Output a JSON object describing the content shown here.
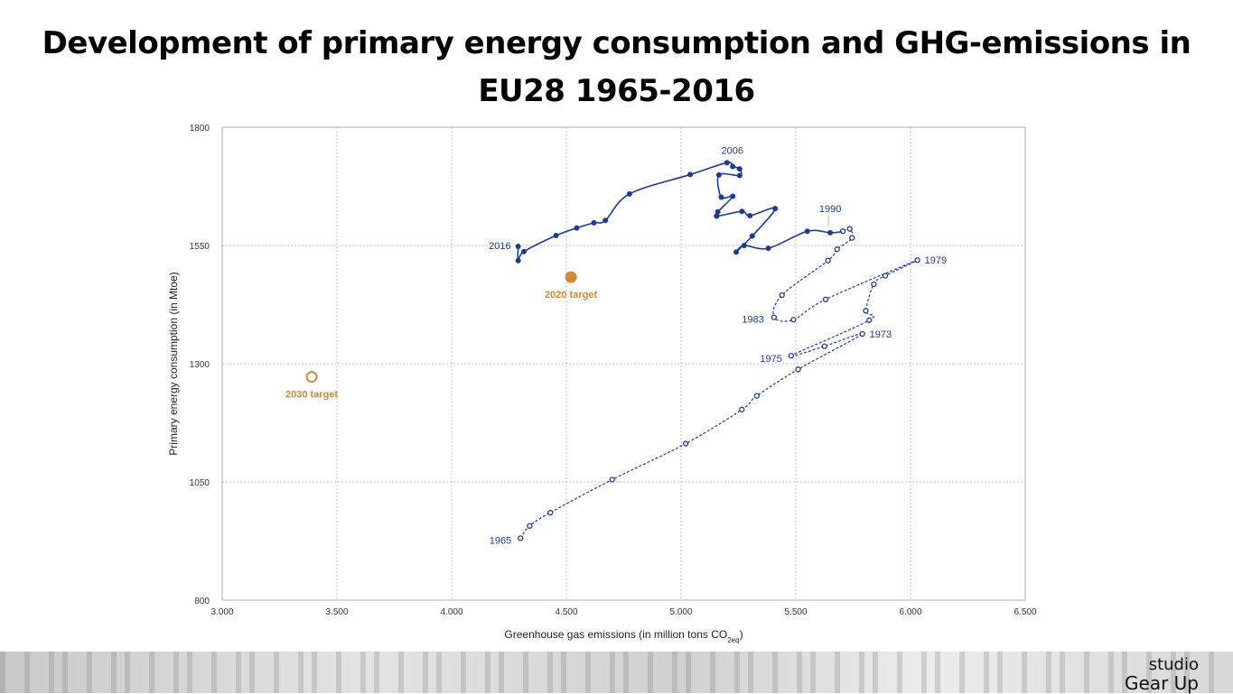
{
  "title": {
    "line1": "Development of primary energy consumption and GHG-emissions in",
    "line2": "EU28 1965-2016"
  },
  "logo": {
    "line1": "studio",
    "line2": "Gear Up"
  },
  "chart_data": {
    "type": "scatter",
    "title": "Development of primary energy consumption and GHG-emissions in EU28 1965-2016",
    "xlabel": "Greenhouse gas emissions (in million tons CO",
    "xlabel_sub": "2eq",
    "xlabel_end": ")",
    "ylabel": "Primary energy consumption (in Mtoe)",
    "xlim": [
      3000,
      6500
    ],
    "ylim": [
      800,
      1800
    ],
    "xticks": [
      3000,
      3500,
      4000,
      4500,
      5000,
      5500,
      6000,
      6500
    ],
    "xtick_labels": [
      "3.000",
      "3.500",
      "4.000",
      "4.500",
      "5.000",
      "5.500",
      "6.000",
      "6.500"
    ],
    "yticks": [
      800,
      1050,
      1300,
      1550,
      1800
    ],
    "ytick_labels": [
      "800",
      "1050",
      "1300",
      "1550",
      "1800"
    ],
    "grid": true,
    "colors": {
      "series": "#1f3a93",
      "target": "#d08a3a",
      "grid": "#aaaaaa"
    },
    "series": [
      {
        "style": "dashed-open",
        "points": [
          [
            4300,
            931
          ],
          [
            4340,
            957
          ],
          [
            4430,
            985
          ],
          [
            4700,
            1055
          ],
          [
            5020,
            1131
          ],
          [
            5265,
            1203
          ],
          [
            5330,
            1232
          ],
          [
            5510,
            1288
          ],
          [
            5790,
            1363
          ],
          [
            5625,
            1337
          ],
          [
            5480,
            1317
          ],
          [
            5820,
            1392
          ],
          [
            5805,
            1412
          ],
          [
            5840,
            1468
          ],
          [
            5890,
            1486
          ],
          [
            6030,
            1519
          ],
          [
            5630,
            1436
          ],
          [
            5490,
            1393
          ],
          [
            5405,
            1398
          ],
          [
            5440,
            1445
          ],
          [
            5640,
            1518
          ],
          [
            5680,
            1542
          ],
          [
            5745,
            1566
          ],
          [
            5735,
            1585
          ],
          [
            5705,
            1580
          ],
          [
            5700,
            1579
          ]
        ]
      },
      {
        "style": "solid-filled",
        "points": [
          [
            5700,
            1579
          ],
          [
            5650,
            1577
          ],
          [
            5550,
            1580
          ],
          [
            5380,
            1544
          ],
          [
            5275,
            1550
          ],
          [
            5240,
            1536
          ],
          [
            5310,
            1570
          ],
          [
            5410,
            1628
          ],
          [
            5300,
            1613
          ],
          [
            5265,
            1622
          ],
          [
            5155,
            1612
          ],
          [
            5160,
            1621
          ],
          [
            5225,
            1654
          ],
          [
            5175,
            1652
          ],
          [
            5165,
            1699
          ],
          [
            5255,
            1698
          ],
          [
            5255,
            1712
          ],
          [
            5225,
            1717
          ],
          [
            5200,
            1725
          ],
          [
            5040,
            1700
          ],
          [
            4775,
            1659
          ],
          [
            4670,
            1603
          ],
          [
            4620,
            1598
          ],
          [
            4545,
            1587
          ],
          [
            4455,
            1571
          ],
          [
            4315,
            1537
          ],
          [
            4290,
            1518
          ],
          [
            4290,
            1548
          ]
        ]
      }
    ],
    "labels": [
      {
        "text": "1965",
        "x": 4300,
        "y": 931
      },
      {
        "text": "1973",
        "x": 5790,
        "y": 1363
      },
      {
        "text": "1975",
        "x": 5480,
        "y": 1317
      },
      {
        "text": "1979",
        "x": 6030,
        "y": 1519
      },
      {
        "text": "1983",
        "x": 5405,
        "y": 1398
      },
      {
        "text": "1990",
        "x": 5650,
        "y": 1577
      },
      {
        "text": "2006",
        "x": 5200,
        "y": 1725
      },
      {
        "text": "2016",
        "x": 4290,
        "y": 1548
      }
    ],
    "targets": [
      {
        "label": "2020 target",
        "x": 4520,
        "y": 1483,
        "filled": true
      },
      {
        "label": "2030 target",
        "x": 3390,
        "y": 1272,
        "filled": false
      }
    ]
  }
}
